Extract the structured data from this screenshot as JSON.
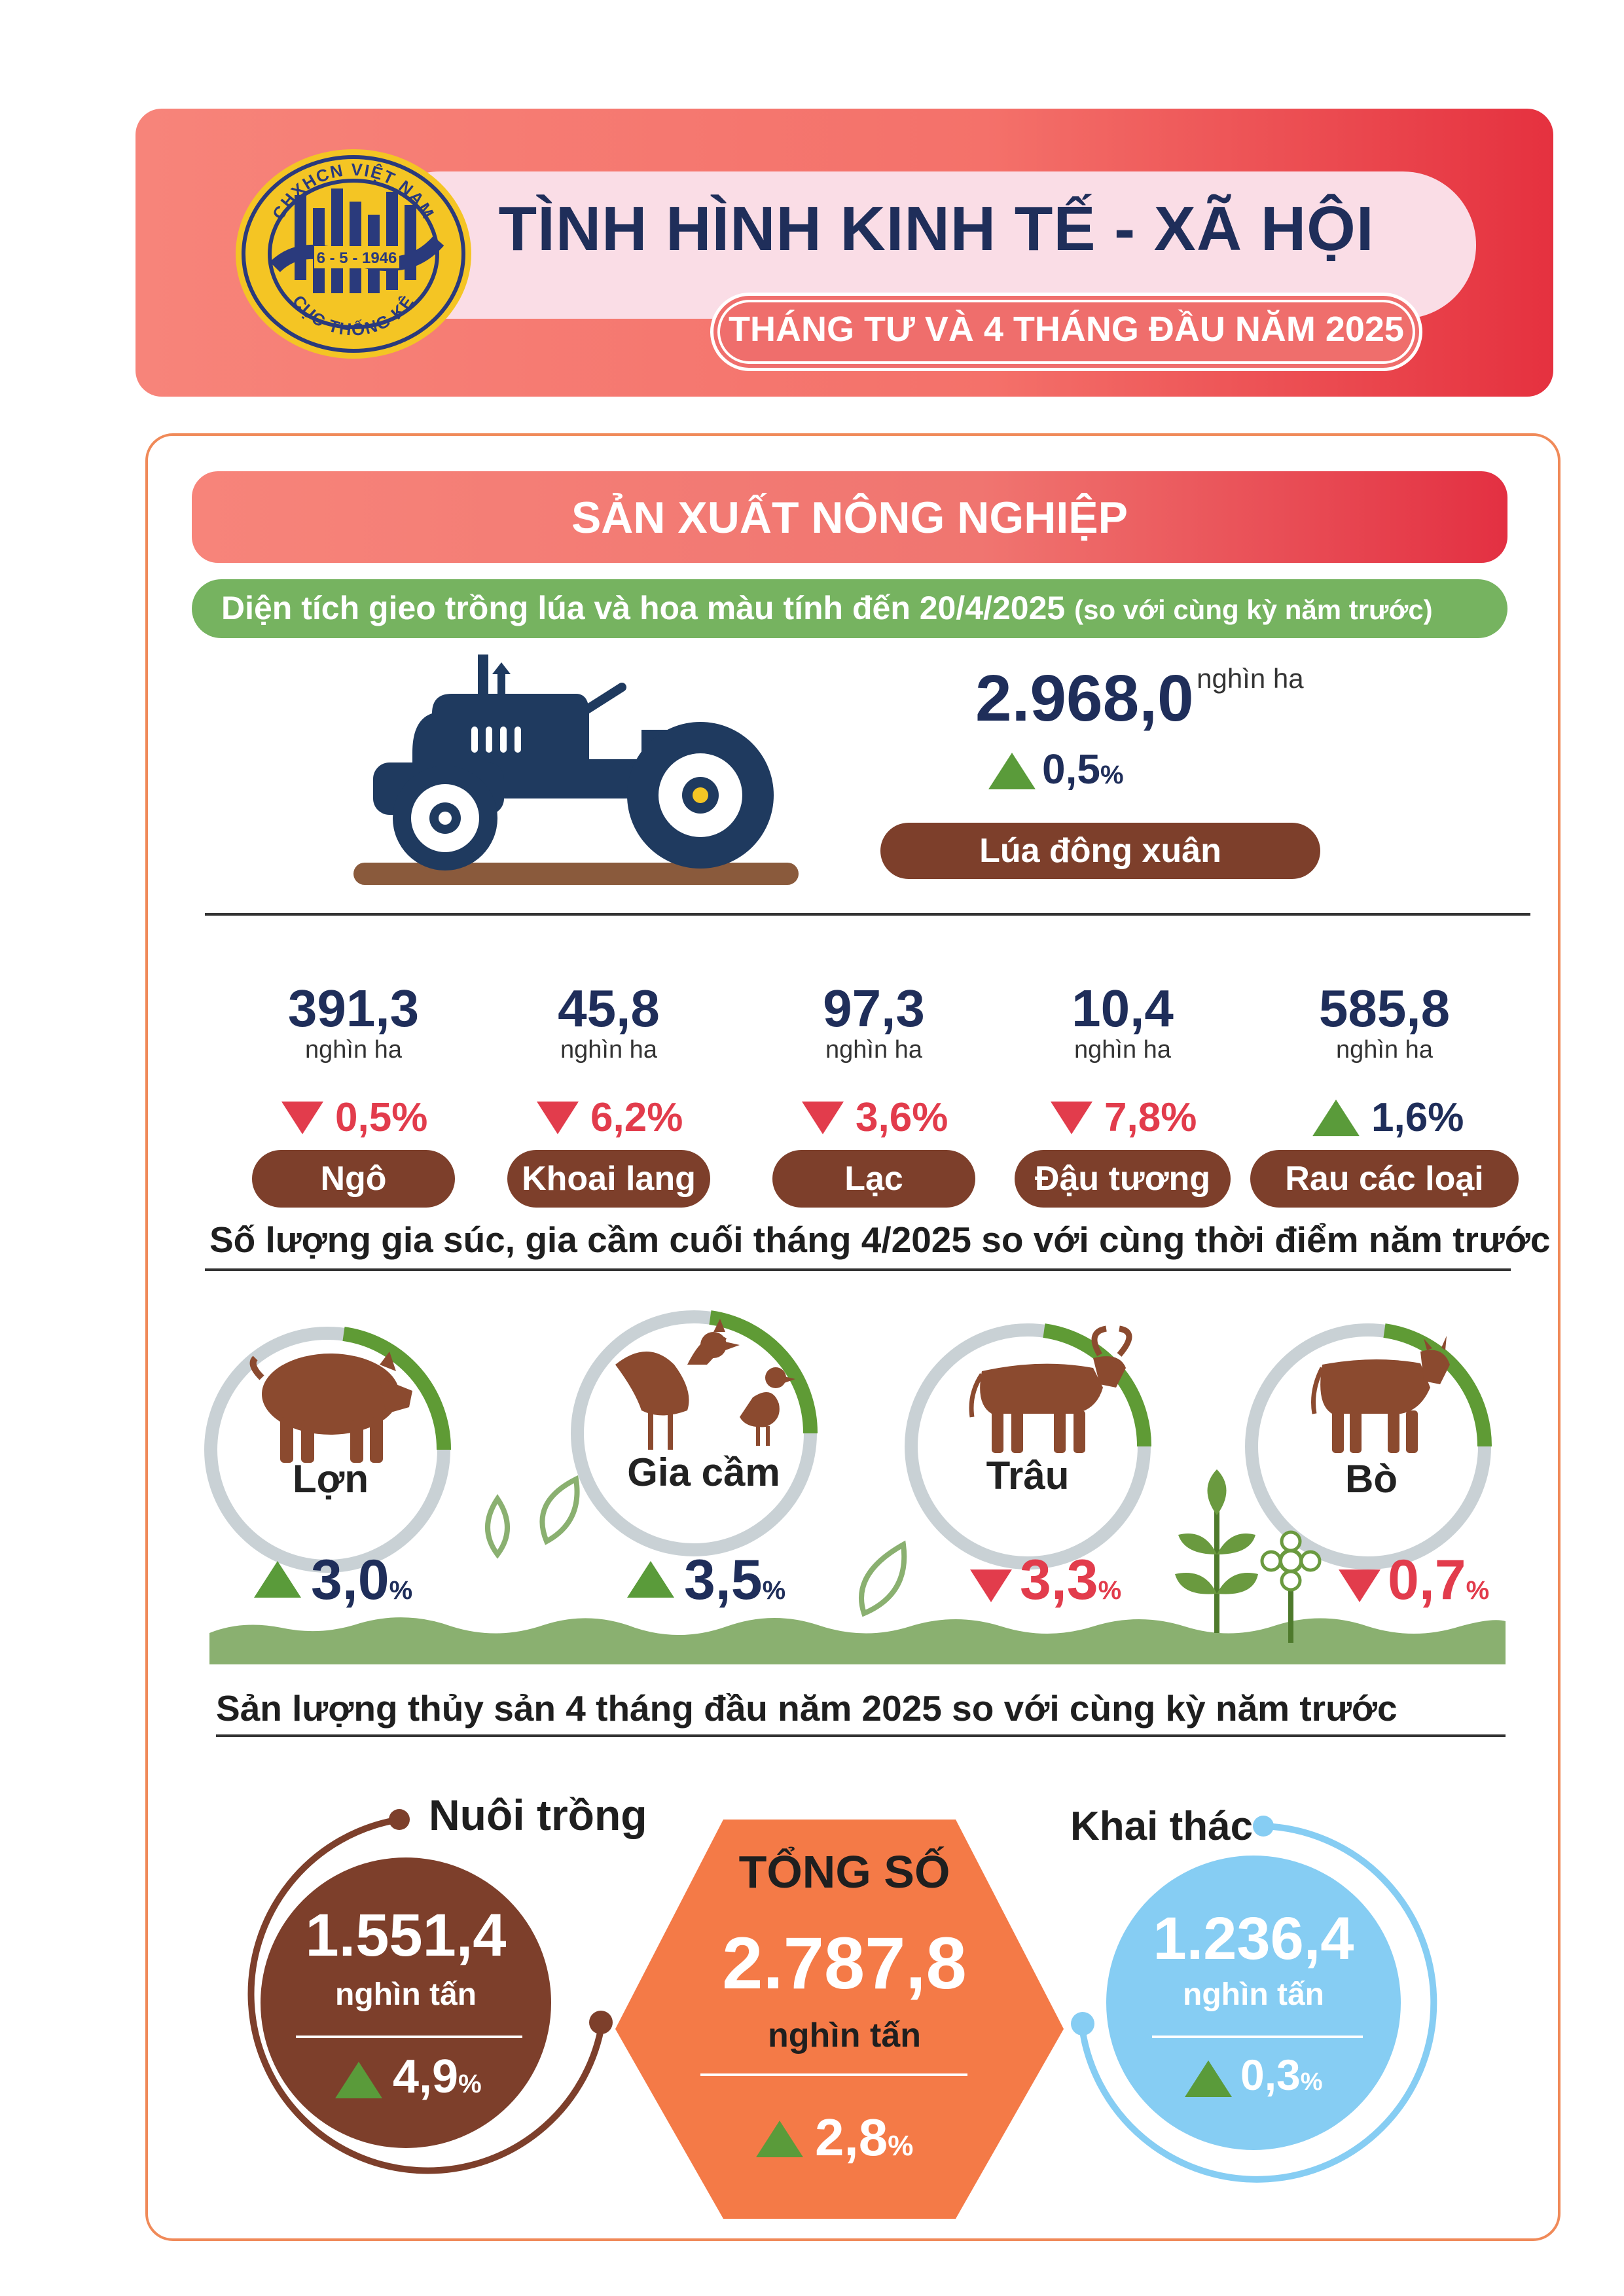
{
  "header": {
    "title": "TÌNH HÌNH KINH TẾ - XÃ HỘI",
    "subtitle": "THÁNG TƯ VÀ 4 THÁNG ĐẦU NĂM 2025",
    "logo": {
      "top_text": "CHXHCN VIỆT NAM",
      "date_text": "6 - 5 - 1946",
      "bottom_text": "CỤC THỐNG KÊ"
    }
  },
  "section": {
    "title": "SẢN XUẤT NÔNG NGHIỆP",
    "planting_heading": "Diện tích gieo trồng lúa và hoa màu tính đến 20/4/2025",
    "planting_heading_note": "(so với cùng kỳ năm trước)"
  },
  "rice": {
    "value": "2.968,0",
    "unit": "nghìn ha",
    "change": "0,5",
    "change_unit": "%",
    "direction": "up",
    "label": "Lúa đông xuân"
  },
  "crops": [
    {
      "value": "391,3",
      "unit": "nghìn ha",
      "change": "0,5%",
      "direction": "down",
      "label": "Ngô"
    },
    {
      "value": "45,8",
      "unit": "nghìn ha",
      "change": "6,2%",
      "direction": "down",
      "label": "Khoai lang"
    },
    {
      "value": "97,3",
      "unit": "nghìn ha",
      "change": "3,6%",
      "direction": "down",
      "label": "Lạc"
    },
    {
      "value": "10,4",
      "unit": "nghìn ha",
      "change": "7,8%",
      "direction": "down",
      "label": "Đậu tương"
    },
    {
      "value": "585,8",
      "unit": "nghìn ha",
      "change": "1,6%",
      "direction": "up",
      "label": "Rau các loại"
    }
  ],
  "livestock": {
    "heading": "Số lượng gia súc, gia cầm cuối tháng 4/2025 so với cùng thời điểm năm trước",
    "items": [
      {
        "label": "Lợn",
        "change": "3,0",
        "unit": "%",
        "direction": "up"
      },
      {
        "label": "Gia cầm",
        "change": "3,5",
        "unit": "%",
        "direction": "up"
      },
      {
        "label": "Trâu",
        "change": "3,3",
        "unit": "%",
        "direction": "down"
      },
      {
        "label": "Bò",
        "change": "0,7",
        "unit": "%",
        "direction": "down"
      }
    ]
  },
  "fishery": {
    "heading": "Sản lượng thủy sản 4 tháng đầu năm 2025 so với cùng kỳ năm trước",
    "aquaculture": {
      "label": "Nuôi trồng",
      "value": "1.551,4",
      "unit": "nghìn tấn",
      "change": "4,9",
      "change_unit": "%",
      "direction": "up"
    },
    "total": {
      "label": "TỔNG SỐ",
      "value": "2.787,8",
      "unit": "nghìn tấn",
      "change": "2,8",
      "change_unit": "%",
      "direction": "up"
    },
    "catch": {
      "label": "Khai thác",
      "value": "1.236,4",
      "unit": "nghìn tấn",
      "change": "0,3",
      "change_unit": "%",
      "direction": "up"
    }
  },
  "colors": {
    "navy": "#1f2e5a",
    "brown": "#7d3f2b",
    "green": "#5a9b3a",
    "red": "#e23c4c",
    "orange": "#f47a47",
    "light_blue": "#86cdf3"
  }
}
